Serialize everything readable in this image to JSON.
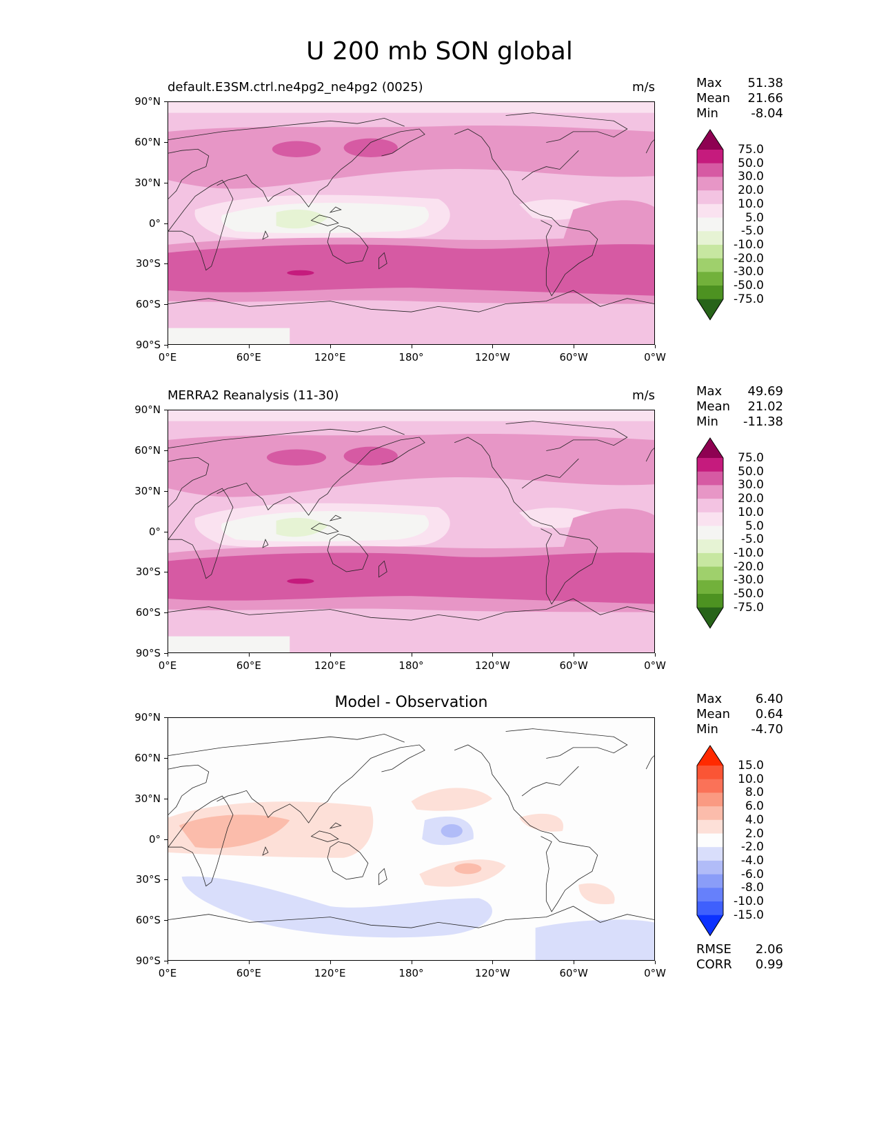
{
  "figure": {
    "title": "U 200 mb SON global"
  },
  "axes": {
    "y_ticks": [
      "90°N",
      "60°N",
      "30°N",
      "0°",
      "30°S",
      "60°S",
      "90°S"
    ],
    "x_ticks": [
      "0°E",
      "60°E",
      "120°E",
      "180°",
      "120°W",
      "60°W",
      "0°W"
    ]
  },
  "panels": [
    {
      "title_left": "default.E3SM.ctrl.ne4pg2_ne4pg2 (0025)",
      "title_right": "m/s",
      "title_center": "",
      "stats": [
        {
          "label": "Max",
          "value": "51.38"
        },
        {
          "label": "Mean",
          "value": "21.66"
        },
        {
          "label": "Min",
          "value": "-8.04"
        }
      ],
      "colorbar": {
        "levels": [
          "75.0",
          "50.0",
          "30.0",
          "20.0",
          "10.0",
          "5.0",
          "-5.0",
          "-10.0",
          "-20.0",
          "-30.0",
          "-50.0",
          "-75.0"
        ],
        "colors": [
          "#8e0152",
          "#c51b7d",
          "#d65aa3",
          "#e796c6",
          "#f3c3e2",
          "#fae2f0",
          "#f5f5f3",
          "#e6f3d4",
          "#c7e7a1",
          "#9fd06c",
          "#72b13b",
          "#4d9221",
          "#276419"
        ]
      }
    },
    {
      "title_left": "MERRA2 Reanalysis (11-30)",
      "title_right": "m/s",
      "title_center": "",
      "stats": [
        {
          "label": "Max",
          "value": "49.69"
        },
        {
          "label": "Mean",
          "value": "21.02"
        },
        {
          "label": "Min",
          "value": "-11.38"
        }
      ],
      "colorbar": {
        "levels": [
          "75.0",
          "50.0",
          "30.0",
          "20.0",
          "10.0",
          "5.0",
          "-5.0",
          "-10.0",
          "-20.0",
          "-30.0",
          "-50.0",
          "-75.0"
        ],
        "colors": [
          "#8e0152",
          "#c51b7d",
          "#d65aa3",
          "#e796c6",
          "#f3c3e2",
          "#fae2f0",
          "#f5f5f3",
          "#e6f3d4",
          "#c7e7a1",
          "#9fd06c",
          "#72b13b",
          "#4d9221",
          "#276419"
        ]
      }
    },
    {
      "title_left": "",
      "title_right": "",
      "title_center": "Model - Observation",
      "stats": [
        {
          "label": "Max",
          "value": "6.40"
        },
        {
          "label": "Mean",
          "value": "0.64"
        },
        {
          "label": "Min",
          "value": "-4.70"
        }
      ],
      "extra_stats": [
        {
          "label": "RMSE",
          "value": "2.06"
        },
        {
          "label": "CORR",
          "value": "0.99"
        }
      ],
      "colorbar": {
        "levels": [
          "15.0",
          "10.0",
          "8.0",
          "6.0",
          "4.0",
          "2.0",
          "-2.0",
          "-4.0",
          "-6.0",
          "-8.0",
          "-10.0",
          "-15.0"
        ],
        "colors": [
          "#ff2a00",
          "#fa5535",
          "#fa7258",
          "#fa9a82",
          "#fbbcab",
          "#fde0d8",
          "#fdfdfd",
          "#d9defb",
          "#b1bcf8",
          "#8a9df8",
          "#6680fb",
          "#3f60fd",
          "#0c32ff"
        ]
      }
    }
  ]
}
